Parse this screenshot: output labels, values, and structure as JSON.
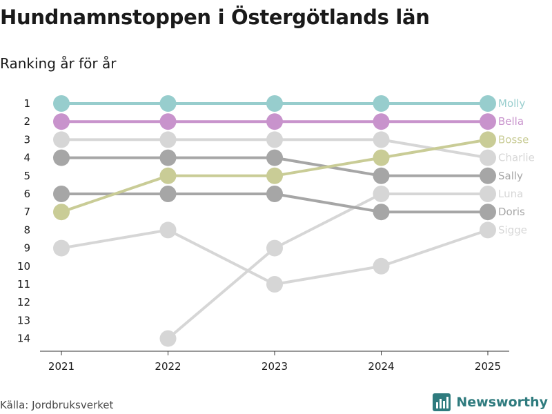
{
  "chart_data": {
    "type": "line",
    "title": "Hundnamnstoppen i Östergötlands län",
    "subtitle": "Ranking år för år",
    "x": [
      "2021",
      "2022",
      "2023",
      "2024",
      "2025"
    ],
    "y_ticks": [
      "1",
      "2",
      "3",
      "4",
      "5",
      "6",
      "7",
      "8",
      "9",
      "10",
      "11",
      "12",
      "13",
      "14"
    ],
    "ylim": [
      1,
      14
    ],
    "y_inverted": true,
    "series": [
      {
        "name": "Molly",
        "color": "#97cdcd",
        "values": [
          1,
          1,
          1,
          1,
          1
        ]
      },
      {
        "name": "Bella",
        "color": "#c893cc",
        "values": [
          2,
          2,
          2,
          2,
          2
        ]
      },
      {
        "name": "Bosse",
        "color": "#c9cc96",
        "values": [
          7,
          5,
          5,
          4,
          3
        ]
      },
      {
        "name": "Charlie",
        "color": "#d6d6d6",
        "values": [
          3,
          3,
          3,
          3,
          4
        ]
      },
      {
        "name": "Sally",
        "color": "#a6a6a6",
        "values": [
          4,
          4,
          4,
          5,
          5
        ]
      },
      {
        "name": "Luna",
        "color": "#d6d6d6",
        "values": [
          null,
          14,
          9,
          6,
          6
        ]
      },
      {
        "name": "Doris",
        "color": "#a6a6a6",
        "values": [
          6,
          6,
          6,
          7,
          7
        ]
      },
      {
        "name": "Sigge",
        "color": "#d6d6d6",
        "values": [
          9,
          8,
          11,
          10,
          8
        ]
      }
    ]
  },
  "footer": {
    "source": "Källa: Jordbruksverket",
    "brand": "Newsworthy",
    "brand_color": "#2f7b7e"
  },
  "icons": {
    "brand_logo": "bar-chart-logo-icon"
  }
}
